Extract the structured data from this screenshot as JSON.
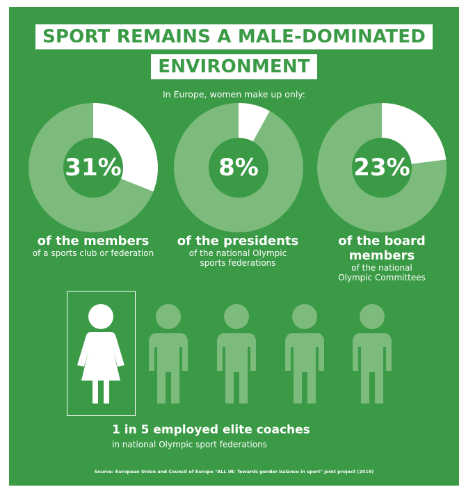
{
  "title_line1": "SPORT REMAINS A MALE-DOMINATED",
  "title_line2": "ENVIRONMENT",
  "subtitle": "In Europe, women make up only:",
  "chart_data": [
    {
      "type": "pie",
      "variant": "donut",
      "value_percent": 31,
      "label": "31%",
      "heading": "of the members",
      "description": "of a sports club or federation"
    },
    {
      "type": "pie",
      "variant": "donut",
      "value_percent": 8,
      "label": "8%",
      "heading": "of the presidents",
      "description": "of the national Olympic sports federations"
    },
    {
      "type": "pie",
      "variant": "donut",
      "value_percent": 23,
      "label": "23%",
      "heading": "of the board members",
      "description": "of the national Olympic Committees"
    }
  ],
  "coaches": {
    "heading": "1 in 5 employed elite coaches",
    "description": "in national Olympic sport federations",
    "female_count": 1,
    "total_count": 5
  },
  "source": "Source: European Union and Council of Europe \"ALL IN: Towards gender balance in sport\" joint project (2019)",
  "colors": {
    "background": "#3a9a45",
    "ring_base": "#7dbb7d",
    "highlight": "#ffffff",
    "figure_other": "#7dbb7d"
  }
}
